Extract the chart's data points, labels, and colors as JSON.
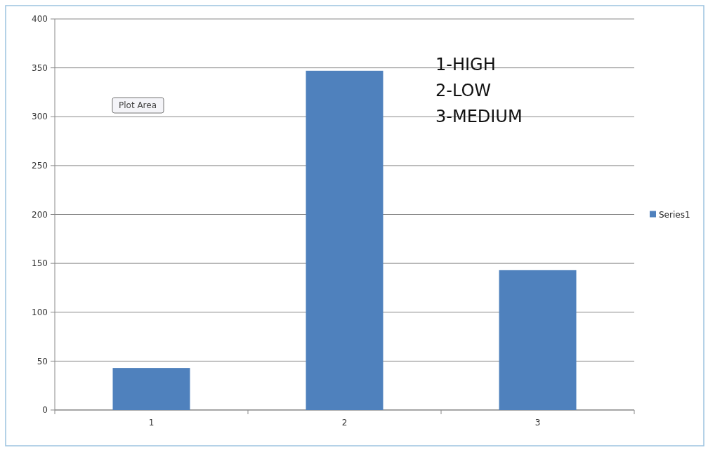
{
  "chart_data": {
    "type": "bar",
    "categories": [
      "1",
      "2",
      "3"
    ],
    "series": [
      {
        "name": "Series1",
        "color": "#4f81bd",
        "values": [
          43,
          347,
          143
        ]
      }
    ],
    "ylim": [
      0,
      400
    ],
    "yticks": [
      0,
      50,
      100,
      150,
      200,
      250,
      300,
      350,
      400
    ],
    "grid": "y",
    "legend": "right",
    "annotations": [
      "1-HIGH",
      "2-LOW",
      "3-MEDIUM",
      "Plot Area"
    ]
  }
}
